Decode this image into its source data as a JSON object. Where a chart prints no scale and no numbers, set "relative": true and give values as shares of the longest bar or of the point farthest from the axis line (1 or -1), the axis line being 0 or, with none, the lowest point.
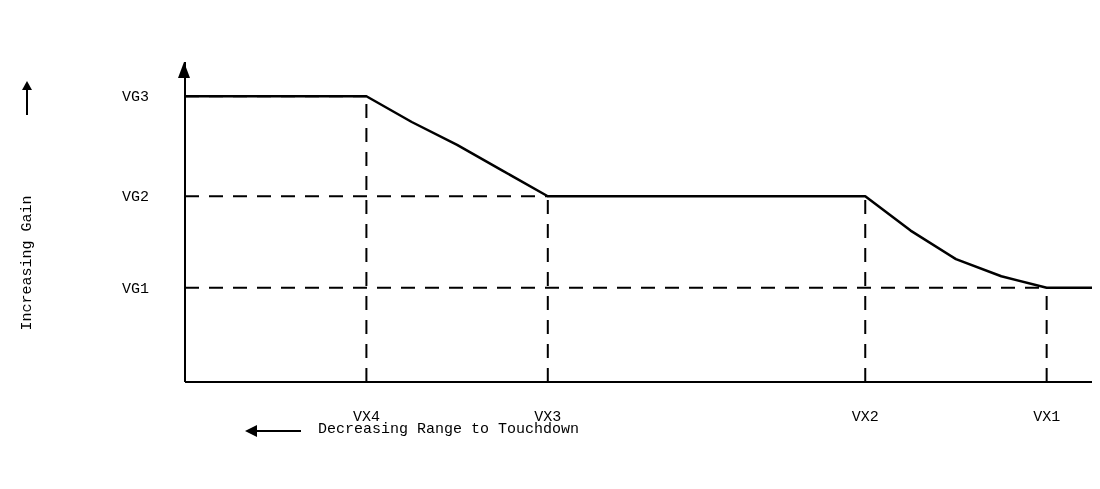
{
  "chart_data": {
    "type": "line",
    "relative": true,
    "xlabel": "Decreasing Range to Touchdown",
    "annotations": [
      "Increasing Gain"
    ],
    "categories": [
      null,
      null,
      null,
      null,
      "VX4",
      null,
      null,
      null,
      "VX3",
      null,
      null,
      null,
      null,
      null,
      null,
      "VX2",
      null,
      null,
      null,
      "VX1",
      null
    ],
    "series": [
      {
        "color": "#000000",
        "values": [
          1,
          1,
          1,
          1,
          1,
          0.91,
          0.83,
          0.74,
          0.65,
          0.65,
          0.65,
          0.65,
          0.65,
          0.65,
          0.65,
          0.65,
          0.53,
          0.43,
          0.37,
          0.33,
          0.33
        ]
      }
    ],
    "ref_lines": [
      {
        "axis": "y",
        "value": 1,
        "label": "VG3",
        "color": "#000000",
        "line_style": "dashed"
      },
      {
        "axis": "y",
        "value": 0.65,
        "label": "VG2",
        "color": "#000000",
        "line_style": "dashed"
      },
      {
        "axis": "y",
        "value": 0.33,
        "label": "VG1",
        "color": "#000000",
        "line_style": "dashed"
      },
      {
        "axis": "x",
        "value": "VX4",
        "color": "#000000",
        "line_style": "dashed"
      },
      {
        "axis": "x",
        "value": "VX3",
        "color": "#000000",
        "line_style": "dashed"
      },
      {
        "axis": "x",
        "value": "VX2",
        "color": "#000000",
        "line_style": "dashed"
      },
      {
        "axis": "x",
        "value": "VX1",
        "color": "#000000",
        "line_style": "dashed"
      }
    ],
    "grid": false,
    "legend": false,
    "marker": "none",
    "line_style": "solid"
  }
}
